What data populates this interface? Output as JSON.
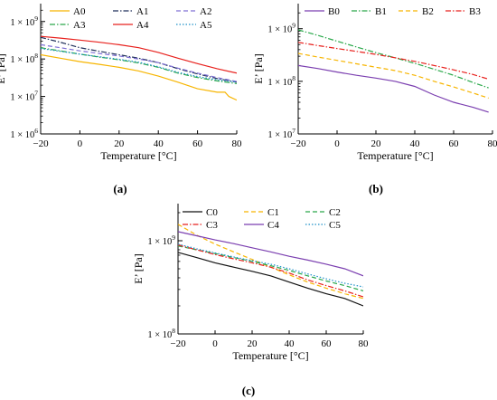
{
  "figure": {
    "panels": [
      {
        "label": "(a)"
      },
      {
        "label": "(b)"
      },
      {
        "label": "(c)"
      }
    ]
  },
  "chart_data": [
    {
      "type": "line",
      "panel": "(a)",
      "xlabel": "Temperature [°C]",
      "ylabel": "E’ [Pa]",
      "log_y": true,
      "xlim": [
        -20,
        80
      ],
      "ylim": [
        1000000,
        3000000000
      ],
      "x_ticks": [
        -20,
        0,
        20,
        40,
        60,
        80
      ],
      "y_ticks": [
        {
          "value": 1000000,
          "label": "1 × 10",
          "exp": "6"
        },
        {
          "value": 10000000,
          "label": "1 × 10",
          "exp": "7"
        },
        {
          "value": 100000000,
          "label": "1 × 10",
          "exp": "8"
        },
        {
          "value": 1000000000,
          "label": "1 × 10",
          "exp": "9"
        }
      ],
      "grid": false,
      "legend_position": "top",
      "series": [
        {
          "name": "A0",
          "color": "#f7b500",
          "dash": "solid",
          "x": [
            -20,
            -10,
            0,
            10,
            20,
            30,
            40,
            50,
            60,
            70,
            74,
            76,
            80
          ],
          "y": [
            130000000,
            105000000,
            85000000,
            72000000,
            60000000,
            48000000,
            35000000,
            24000000,
            16000000,
            13000000,
            13000000,
            10000000,
            8000000
          ]
        },
        {
          "name": "A1",
          "color": "#1f2f5a",
          "dash": "dashdot",
          "x": [
            -20,
            -10,
            0,
            10,
            20,
            30,
            40,
            50,
            60,
            70,
            80
          ],
          "y": [
            380000000,
            280000000,
            200000000,
            160000000,
            130000000,
            105000000,
            80000000,
            55000000,
            40000000,
            30000000,
            24000000
          ]
        },
        {
          "name": "A2",
          "color": "#7f6fd4",
          "dash": "dashed",
          "x": [
            -20,
            -10,
            0,
            10,
            20,
            30,
            40,
            50,
            60,
            70,
            80
          ],
          "y": [
            240000000,
            200000000,
            165000000,
            140000000,
            120000000,
            100000000,
            80000000,
            57000000,
            42000000,
            32000000,
            25000000
          ]
        },
        {
          "name": "A3",
          "color": "#2aa84a",
          "dash": "dashdot",
          "x": [
            -20,
            -10,
            0,
            10,
            20,
            30,
            40,
            50,
            60,
            70,
            80
          ],
          "y": [
            200000000,
            165000000,
            135000000,
            112000000,
            95000000,
            78000000,
            60000000,
            42000000,
            32000000,
            26000000,
            22000000
          ]
        },
        {
          "name": "A4",
          "color": "#e8211d",
          "dash": "solid",
          "x": [
            -20,
            -10,
            0,
            10,
            20,
            30,
            40,
            50,
            60,
            70,
            80
          ],
          "y": [
            400000000,
            360000000,
            320000000,
            280000000,
            240000000,
            200000000,
            150000000,
            105000000,
            75000000,
            55000000,
            42000000
          ]
        },
        {
          "name": "A5",
          "color": "#1e90c8",
          "dash": "dotted",
          "x": [
            -20,
            -10,
            0,
            10,
            20,
            30,
            40,
            50,
            60,
            70,
            80
          ],
          "y": [
            190000000,
            160000000,
            135000000,
            115000000,
            98000000,
            82000000,
            62000000,
            44000000,
            34000000,
            28000000,
            24000000
          ]
        }
      ]
    },
    {
      "type": "line",
      "panel": "(b)",
      "xlabel": "Temperature [°C]",
      "ylabel": "E’ [Pa]",
      "log_y": true,
      "xlim": [
        -20,
        80
      ],
      "ylim": [
        10000000,
        3000000000
      ],
      "x_ticks": [
        -20,
        0,
        20,
        40,
        60,
        80
      ],
      "y_ticks": [
        {
          "value": 10000000,
          "label": "1 × 10",
          "exp": "7"
        },
        {
          "value": 100000000,
          "label": "1 × 10",
          "exp": "8"
        },
        {
          "value": 1000000000,
          "label": "1 × 10",
          "exp": "9"
        }
      ],
      "grid": false,
      "legend_position": "top",
      "series": [
        {
          "name": "B0",
          "color": "#7b3fb0",
          "dash": "solid",
          "x": [
            -20,
            -10,
            0,
            10,
            20,
            30,
            40,
            50,
            60,
            70,
            78
          ],
          "y": [
            200000000,
            175000000,
            150000000,
            130000000,
            115000000,
            100000000,
            80000000,
            55000000,
            40000000,
            32000000,
            26000000
          ]
        },
        {
          "name": "B1",
          "color": "#2aa84a",
          "dash": "dashdot",
          "x": [
            -20,
            -10,
            0,
            10,
            20,
            30,
            40,
            50,
            60,
            70,
            78
          ],
          "y": [
            950000000,
            750000000,
            580000000,
            450000000,
            350000000,
            280000000,
            220000000,
            170000000,
            130000000,
            95000000,
            75000000
          ]
        },
        {
          "name": "B2",
          "color": "#f7b500",
          "dash": "dashed",
          "x": [
            -20,
            -10,
            0,
            10,
            20,
            30,
            40,
            50,
            60,
            70,
            78
          ],
          "y": [
            340000000,
            290000000,
            250000000,
            215000000,
            185000000,
            160000000,
            130000000,
            100000000,
            78000000,
            60000000,
            48000000
          ]
        },
        {
          "name": "B3",
          "color": "#e8211d",
          "dash": "dashdot",
          "x": [
            -20,
            -10,
            0,
            10,
            20,
            30,
            40,
            50,
            60,
            70,
            78
          ],
          "y": [
            550000000,
            480000000,
            420000000,
            370000000,
            325000000,
            280000000,
            240000000,
            200000000,
            165000000,
            135000000,
            110000000
          ]
        }
      ]
    },
    {
      "type": "line",
      "panel": "(c)",
      "xlabel": "Temperature [°C]",
      "ylabel": "E’ [Pa]",
      "log_y": true,
      "xlim": [
        -20,
        80
      ],
      "ylim": [
        100000000,
        2500000000
      ],
      "x_ticks": [
        -20,
        0,
        20,
        40,
        60,
        80
      ],
      "y_ticks": [
        {
          "value": 100000000,
          "label": "1 × 10",
          "exp": "8"
        },
        {
          "value": 1000000000,
          "label": "1 × 10",
          "exp": "9"
        }
      ],
      "grid": false,
      "legend_position": "top",
      "series": [
        {
          "name": "C0",
          "color": "#111111",
          "dash": "solid",
          "x": [
            -20,
            -10,
            0,
            10,
            20,
            30,
            40,
            50,
            60,
            70,
            80
          ],
          "y": [
            750000000,
            660000000,
            580000000,
            520000000,
            470000000,
            420000000,
            360000000,
            310000000,
            270000000,
            240000000,
            200000000
          ]
        },
        {
          "name": "C1",
          "color": "#f7b500",
          "dash": "dashed",
          "x": [
            -20,
            -10,
            0,
            10,
            20,
            30,
            40,
            50,
            60,
            70,
            80
          ],
          "y": [
            1500000000,
            1150000000,
            920000000,
            760000000,
            630000000,
            520000000,
            430000000,
            360000000,
            310000000,
            270000000,
            240000000
          ]
        },
        {
          "name": "C2",
          "color": "#2aa84a",
          "dash": "dashed",
          "x": [
            -20,
            -10,
            0,
            10,
            20,
            30,
            40,
            50,
            60,
            70,
            80
          ],
          "y": [
            880000000,
            800000000,
            730000000,
            660000000,
            600000000,
            540000000,
            480000000,
            420000000,
            370000000,
            330000000,
            290000000
          ]
        },
        {
          "name": "C3",
          "color": "#e8211d",
          "dash": "dashdot",
          "x": [
            -20,
            -10,
            0,
            10,
            20,
            30,
            40,
            50,
            60,
            70,
            80
          ],
          "y": [
            900000000,
            800000000,
            710000000,
            640000000,
            580000000,
            520000000,
            450000000,
            380000000,
            330000000,
            290000000,
            250000000
          ]
        },
        {
          "name": "C4",
          "color": "#7b3fb0",
          "dash": "solid",
          "x": [
            -20,
            -10,
            0,
            10,
            20,
            30,
            40,
            50,
            60,
            70,
            80
          ],
          "y": [
            1250000000,
            1130000000,
            1020000000,
            930000000,
            840000000,
            760000000,
            680000000,
            620000000,
            560000000,
            500000000,
            420000000
          ]
        },
        {
          "name": "C5",
          "color": "#1e90c8",
          "dash": "dotted",
          "x": [
            -20,
            -10,
            0,
            10,
            20,
            30,
            40,
            50,
            60,
            70,
            80
          ],
          "y": [
            920000000,
            820000000,
            740000000,
            670000000,
            610000000,
            560000000,
            500000000,
            440000000,
            390000000,
            350000000,
            320000000
          ]
        }
      ]
    }
  ]
}
